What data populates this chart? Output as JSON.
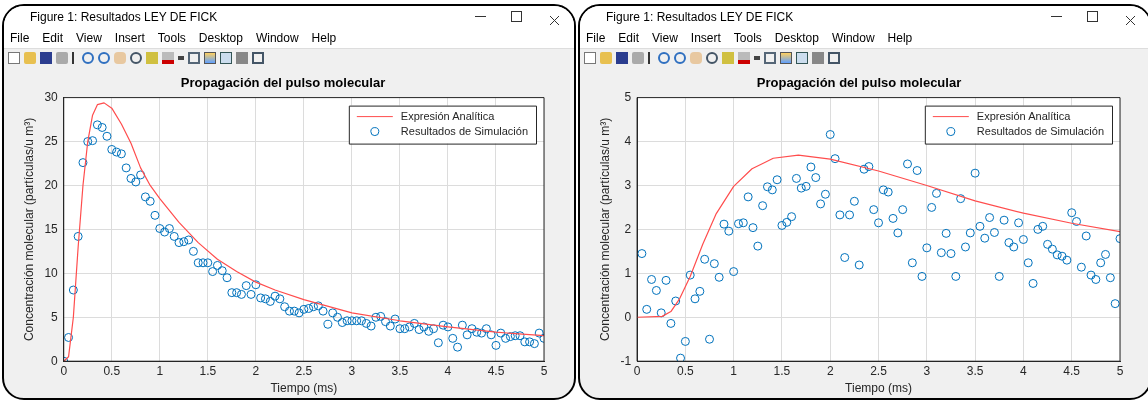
{
  "chart_data": [
    {
      "type": "scatter",
      "title": "Propagación del pulso molecular",
      "xlabel": "Tiempo (ms)",
      "ylabel": "Concentración molecular (partículas/u m³)",
      "annotations": [
        "Figure 1: Resultados LEY DE FICK",
        "File",
        "Edit",
        "View",
        "Insert",
        "Tools",
        "Desktop",
        "Window",
        "Help"
      ],
      "xlim": [
        0,
        5
      ],
      "xticks": [
        0,
        0.5,
        1,
        1.5,
        2,
        2.5,
        3,
        3.5,
        4,
        4.5,
        5
      ],
      "ylim": [
        0,
        30
      ],
      "yticks": [
        0,
        5,
        10,
        15,
        20,
        25,
        30
      ],
      "grid": true,
      "legend": "top right",
      "series": [
        {
          "name": "Expresión Analítica",
          "type": "line",
          "color": "#ff4d4d",
          "x": [
            0,
            0.05,
            0.1,
            0.15,
            0.2,
            0.25,
            0.3,
            0.35,
            0.42,
            0.5,
            0.6,
            0.7,
            0.8,
            0.9,
            1.0,
            1.2,
            1.4,
            1.6,
            1.8,
            2.0,
            2.2,
            2.5,
            3.0,
            3.5,
            4.0,
            4.5,
            5.0
          ],
          "values": [
            0,
            0.5,
            5,
            13,
            20,
            25,
            28,
            29.2,
            29.4,
            28.8,
            27,
            24.8,
            22,
            20,
            18.5,
            15.8,
            13.5,
            11.6,
            10.2,
            9.0,
            8.1,
            7.0,
            5.5,
            4.6,
            3.9,
            3.3,
            2.9
          ]
        },
        {
          "name": "Resultados de Simulación",
          "color": "#0072bd",
          "marker": "circle",
          "x": [
            0,
            0.05,
            0.1,
            0.15,
            0.2,
            0.25,
            0.3,
            0.35,
            0.4,
            0.45,
            0.5,
            0.55,
            0.6,
            0.65,
            0.7,
            0.75,
            0.8,
            0.85,
            0.9,
            0.95,
            1,
            1.05,
            1.1,
            1.15,
            1.2,
            1.25,
            1.3,
            1.35,
            1.4,
            1.45,
            1.5,
            1.55,
            1.6,
            1.65,
            1.7,
            1.75,
            1.8,
            1.85,
            1.9,
            1.95,
            2,
            2.05,
            2.1,
            2.15,
            2.2,
            2.25,
            2.3,
            2.35,
            2.4,
            2.45,
            2.5,
            2.55,
            2.6,
            2.65,
            2.7,
            2.75,
            2.8,
            2.85,
            2.9,
            2.95,
            3,
            3.05,
            3.1,
            3.15,
            3.2,
            3.25,
            3.3,
            3.35,
            3.4,
            3.45,
            3.5,
            3.55,
            3.6,
            3.65,
            3.7,
            3.75,
            3.8,
            3.85,
            3.9,
            3.95,
            4,
            4.05,
            4.1,
            4.15,
            4.2,
            4.25,
            4.3,
            4.35,
            4.4,
            4.45,
            4.5,
            4.55,
            4.6,
            4.65,
            4.7,
            4.75,
            4.8,
            4.85,
            4.9,
            4.95,
            5
          ],
          "values": [
            0,
            2.7,
            8.1,
            14.2,
            22.6,
            25.0,
            25.1,
            26.9,
            26.6,
            25.6,
            24.1,
            23.8,
            23.6,
            22.0,
            20.8,
            20.4,
            21.2,
            18.7,
            18.2,
            16.6,
            15.1,
            14.7,
            15.1,
            14.2,
            13.5,
            13.6,
            13.8,
            12.5,
            11.2,
            11.2,
            11.2,
            10.2,
            10.9,
            10.3,
            9.5,
            7.8,
            7.8,
            7.6,
            8.6,
            7.6,
            8.7,
            7.2,
            7.1,
            6.8,
            7.4,
            7.1,
            6.2,
            5.7,
            5.7,
            5.5,
            5.9,
            6.0,
            6.2,
            6.3,
            5.7,
            4.2,
            5.5,
            5.0,
            4.4,
            4.6,
            4.6,
            4.6,
            4.6,
            4.3,
            4.0,
            5.0,
            5.1,
            4.5,
            4.0,
            4.8,
            3.7,
            3.7,
            3.9,
            4.3,
            3.6,
            3.9,
            3.4,
            3.7,
            2.1,
            4.1,
            3.9,
            2.6,
            1.6,
            4.1,
            3.0,
            3.7,
            3.3,
            3.2,
            3.7,
            3.0,
            1.8,
            3.2,
            2.6,
            2.8,
            2.9,
            2.9,
            2.2,
            2.2,
            2.0,
            3.2,
            2.6
          ]
        }
      ]
    },
    {
      "type": "scatter",
      "title": "Propagación del pulso molecular",
      "xlabel": "Tiempo (ms)",
      "ylabel": "Concentración molecular (partículas/u m³)",
      "annotations": [
        "Figure 1: Resultados LEY DE FICK",
        "File",
        "Edit",
        "View",
        "Insert",
        "Tools",
        "Desktop",
        "Window",
        "Help"
      ],
      "xlim": [
        0,
        5
      ],
      "xticks": [
        0,
        0.5,
        1,
        1.5,
        2,
        2.5,
        3,
        3.5,
        4,
        4.5,
        5
      ],
      "ylim": [
        -1,
        5
      ],
      "yticks": [
        -1,
        0,
        1,
        2,
        3,
        4,
        5
      ],
      "grid": true,
      "legend": "top right",
      "series": [
        {
          "name": "Expresión Analítica",
          "type": "line",
          "color": "#ff4d4d",
          "x": [
            0,
            0.26,
            0.35,
            0.44,
            0.55,
            0.68,
            0.82,
            1.0,
            1.19,
            1.41,
            1.67,
            2.0,
            2.5,
            3.0,
            3.5,
            4.0,
            4.5,
            5.0
          ],
          "values": [
            0,
            0.02,
            0.13,
            0.42,
            0.93,
            1.66,
            2.36,
            2.98,
            3.38,
            3.62,
            3.69,
            3.6,
            3.33,
            3.0,
            2.65,
            2.37,
            2.14,
            1.95
          ]
        },
        {
          "name": "Resultados de Simulación",
          "color": "#0072bd",
          "marker": "circle",
          "x": [
            0.05,
            0.1,
            0.15,
            0.2,
            0.25,
            0.3,
            0.35,
            0.4,
            0.45,
            0.5,
            0.55,
            0.6,
            0.65,
            0.7,
            0.75,
            0.8,
            0.85,
            0.9,
            0.95,
            1,
            1.05,
            1.1,
            1.15,
            1.2,
            1.25,
            1.3,
            1.35,
            1.4,
            1.45,
            1.5,
            1.55,
            1.6,
            1.65,
            1.7,
            1.75,
            1.8,
            1.85,
            1.9,
            1.95,
            2,
            2.05,
            2.1,
            2.15,
            2.2,
            2.25,
            2.3,
            2.35,
            2.4,
            2.45,
            2.5,
            2.55,
            2.6,
            2.65,
            2.7,
            2.75,
            2.8,
            2.85,
            2.9,
            2.95,
            3,
            3.05,
            3.1,
            3.15,
            3.2,
            3.25,
            3.3,
            3.35,
            3.4,
            3.45,
            3.5,
            3.55,
            3.6,
            3.65,
            3.7,
            3.75,
            3.8,
            3.85,
            3.9,
            3.95,
            4,
            4.05,
            4.1,
            4.15,
            4.2,
            4.25,
            4.3,
            4.35,
            4.4,
            4.45,
            4.5,
            4.55,
            4.6,
            4.65,
            4.7,
            4.75,
            4.8,
            4.85,
            4.9,
            4.95,
            5
          ],
          "values": [
            1.45,
            0.18,
            0.86,
            0.61,
            0.1,
            0.84,
            -0.14,
            0.37,
            -0.93,
            -0.55,
            0.96,
            0.42,
            0.59,
            1.32,
            -0.5,
            1.22,
            0.91,
            2.12,
            1.96,
            1.04,
            2.13,
            2.15,
            2.74,
            2.04,
            1.62,
            2.54,
            2.97,
            2.9,
            3.13,
            2.09,
            2.16,
            2.29,
            3.16,
            2.94,
            2.98,
            3.42,
            3.18,
            2.58,
            2.8,
            4.16,
            3.61,
            2.33,
            1.36,
            2.33,
            2.64,
            1.19,
            3.37,
            3.43,
            2.45,
            2.15,
            2.9,
            2.85,
            2.25,
            1.92,
            2.45,
            3.49,
            1.24,
            3.34,
            0.93,
            1.58,
            2.5,
            2.82,
            1.47,
            1.91,
            1.45,
            0.93,
            2.7,
            1.6,
            1.92,
            3.28,
            2.07,
            1.8,
            2.27,
            1.93,
            0.93,
            2.21,
            1.7,
            1.6,
            2.15,
            1.77,
            1.24,
            0.77,
            2.0,
            2.07,
            1.66,
            1.55,
            1.42,
            1.39,
            1.3,
            2.38,
            2.18,
            1.14,
            1.85,
            0.96,
            0.86,
            1.24,
            1.43,
            0.9,
            0.31,
            1.79
          ]
        }
      ]
    }
  ]
}
